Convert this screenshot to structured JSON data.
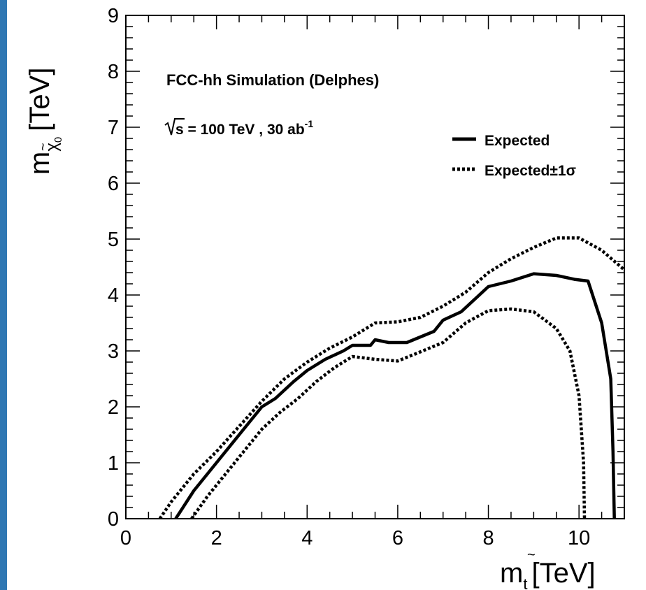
{
  "theme": {
    "edge_color": "#2f77b3",
    "line_color": "#000000"
  },
  "chart_data": {
    "type": "line",
    "xlim": [
      0,
      11
    ],
    "ylim": [
      0,
      9
    ],
    "x_ticks": [
      "0",
      "2",
      "4",
      "6",
      "8",
      "10"
    ],
    "y_ticks": [
      "0",
      "1",
      "2",
      "3",
      "4",
      "5",
      "6",
      "7",
      "8",
      "9"
    ],
    "xlabel": {
      "main": "m",
      "sub": "t",
      "unit": "[TeV]"
    },
    "ylabel": {
      "main": "m",
      "sub": "χ",
      "sub2": "0",
      "unit": "[TeV]"
    },
    "annotations": {
      "title": "FCC-hh Simulation (Delphes)",
      "energy_prefix": "s = 100 TeV , 30 ab",
      "energy_sup": "-1"
    },
    "legend": {
      "placement": "top-right",
      "entries": [
        {
          "label": "Expected",
          "style": "solid"
        },
        {
          "label": "Expected±1σ",
          "style": "dotted"
        }
      ]
    },
    "grid": false,
    "series": [
      {
        "name": "Expected",
        "style": "solid",
        "points": [
          [
            1.1,
            0
          ],
          [
            1.5,
            0.5
          ],
          [
            2.0,
            1.0
          ],
          [
            2.5,
            1.5
          ],
          [
            3.0,
            2.0
          ],
          [
            3.3,
            2.15
          ],
          [
            3.7,
            2.45
          ],
          [
            4.0,
            2.65
          ],
          [
            4.4,
            2.85
          ],
          [
            4.8,
            3.0
          ],
          [
            5.0,
            3.1
          ],
          [
            5.4,
            3.1
          ],
          [
            5.5,
            3.2
          ],
          [
            5.8,
            3.15
          ],
          [
            6.2,
            3.15
          ],
          [
            6.5,
            3.25
          ],
          [
            6.8,
            3.35
          ],
          [
            7.0,
            3.55
          ],
          [
            7.4,
            3.7
          ],
          [
            7.6,
            3.85
          ],
          [
            7.8,
            4.0
          ],
          [
            8.0,
            4.15
          ],
          [
            8.5,
            4.25
          ],
          [
            9.0,
            4.38
          ],
          [
            9.5,
            4.35
          ],
          [
            9.9,
            4.28
          ],
          [
            10.2,
            4.25
          ],
          [
            10.5,
            3.5
          ],
          [
            10.7,
            2.5
          ],
          [
            10.75,
            1.2
          ],
          [
            10.78,
            0
          ]
        ]
      },
      {
        "name": "Expected+1σ",
        "style": "dotted",
        "points": [
          [
            0.75,
            0
          ],
          [
            1.0,
            0.3
          ],
          [
            1.5,
            0.8
          ],
          [
            2.0,
            1.2
          ],
          [
            2.5,
            1.65
          ],
          [
            3.0,
            2.1
          ],
          [
            3.5,
            2.5
          ],
          [
            4.0,
            2.8
          ],
          [
            4.5,
            3.05
          ],
          [
            5.0,
            3.25
          ],
          [
            5.5,
            3.5
          ],
          [
            6.0,
            3.52
          ],
          [
            6.5,
            3.6
          ],
          [
            7.0,
            3.8
          ],
          [
            7.5,
            4.05
          ],
          [
            8.0,
            4.4
          ],
          [
            8.5,
            4.65
          ],
          [
            9.0,
            4.85
          ],
          [
            9.5,
            5.02
          ],
          [
            10.0,
            5.02
          ],
          [
            10.5,
            4.8
          ],
          [
            11.0,
            4.45
          ]
        ]
      },
      {
        "name": "Expected-1σ",
        "style": "dotted",
        "points": [
          [
            1.45,
            0
          ],
          [
            1.8,
            0.4
          ],
          [
            2.2,
            0.8
          ],
          [
            2.6,
            1.2
          ],
          [
            3.0,
            1.6
          ],
          [
            3.4,
            1.9
          ],
          [
            3.8,
            2.15
          ],
          [
            4.2,
            2.45
          ],
          [
            4.6,
            2.7
          ],
          [
            5.0,
            2.9
          ],
          [
            5.5,
            2.85
          ],
          [
            6.0,
            2.82
          ],
          [
            6.4,
            2.95
          ],
          [
            7.0,
            3.15
          ],
          [
            7.5,
            3.5
          ],
          [
            8.0,
            3.72
          ],
          [
            8.5,
            3.75
          ],
          [
            9.0,
            3.7
          ],
          [
            9.5,
            3.4
          ],
          [
            9.8,
            3.0
          ],
          [
            10.0,
            2.2
          ],
          [
            10.1,
            1.0
          ],
          [
            10.12,
            0
          ]
        ]
      }
    ]
  }
}
